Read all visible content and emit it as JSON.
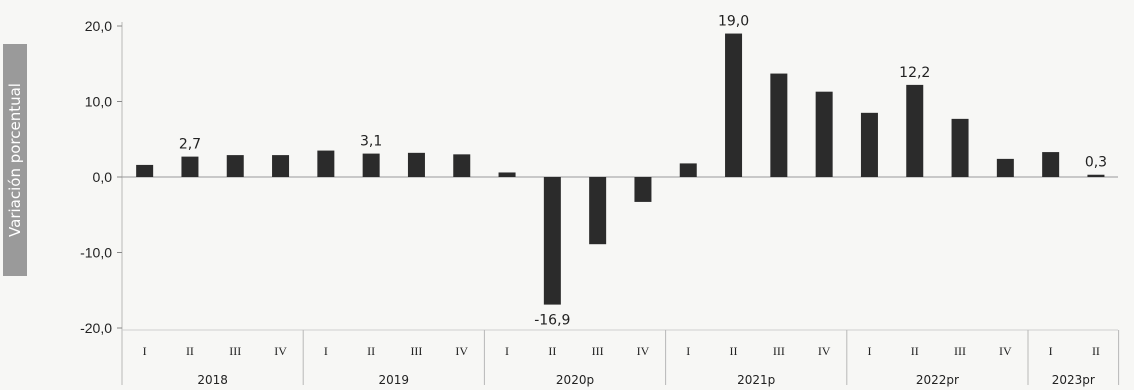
{
  "chart_data": {
    "type": "bar",
    "ylabel": "Variación porcentual",
    "ylim": [
      -20,
      20
    ],
    "yticks": [
      "20,0",
      "10,0",
      "0,0",
      "-10,0",
      "-20,0"
    ],
    "ytick_values": [
      20,
      10,
      0,
      -10,
      -20
    ],
    "bar_color": "#2b2b2b",
    "ylabel_bg": "#9a9a9a",
    "groups": [
      {
        "year": "2018",
        "quarters": [
          "I",
          "II",
          "III",
          "IV"
        ],
        "values": [
          1.6,
          2.7,
          2.9,
          2.9
        ]
      },
      {
        "year": "2019",
        "quarters": [
          "I",
          "II",
          "III",
          "IV"
        ],
        "values": [
          3.5,
          3.1,
          3.2,
          3.0
        ]
      },
      {
        "year": "2020p",
        "quarters": [
          "I",
          "II",
          "III",
          "IV"
        ],
        "values": [
          0.6,
          -16.9,
          -8.9,
          -3.3
        ]
      },
      {
        "year": "2021p",
        "quarters": [
          "I",
          "II",
          "III",
          "IV"
        ],
        "values": [
          1.8,
          19.0,
          13.7,
          11.3
        ]
      },
      {
        "year": "2022pr",
        "quarters": [
          "I",
          "II",
          "III",
          "IV"
        ],
        "values": [
          8.5,
          12.2,
          7.7,
          2.4
        ]
      },
      {
        "year": "2023pr",
        "quarters": [
          "I",
          "II"
        ],
        "values": [
          3.3,
          0.3
        ]
      }
    ],
    "data_labels": [
      {
        "group": 0,
        "index": 1,
        "text": "2,7"
      },
      {
        "group": 1,
        "index": 1,
        "text": "3,1"
      },
      {
        "group": 2,
        "index": 1,
        "text": "-16,9"
      },
      {
        "group": 3,
        "index": 1,
        "text": "19,0"
      },
      {
        "group": 4,
        "index": 1,
        "text": "12,2"
      },
      {
        "group": 5,
        "index": 1,
        "text": "0,3"
      }
    ],
    "grid": false
  }
}
